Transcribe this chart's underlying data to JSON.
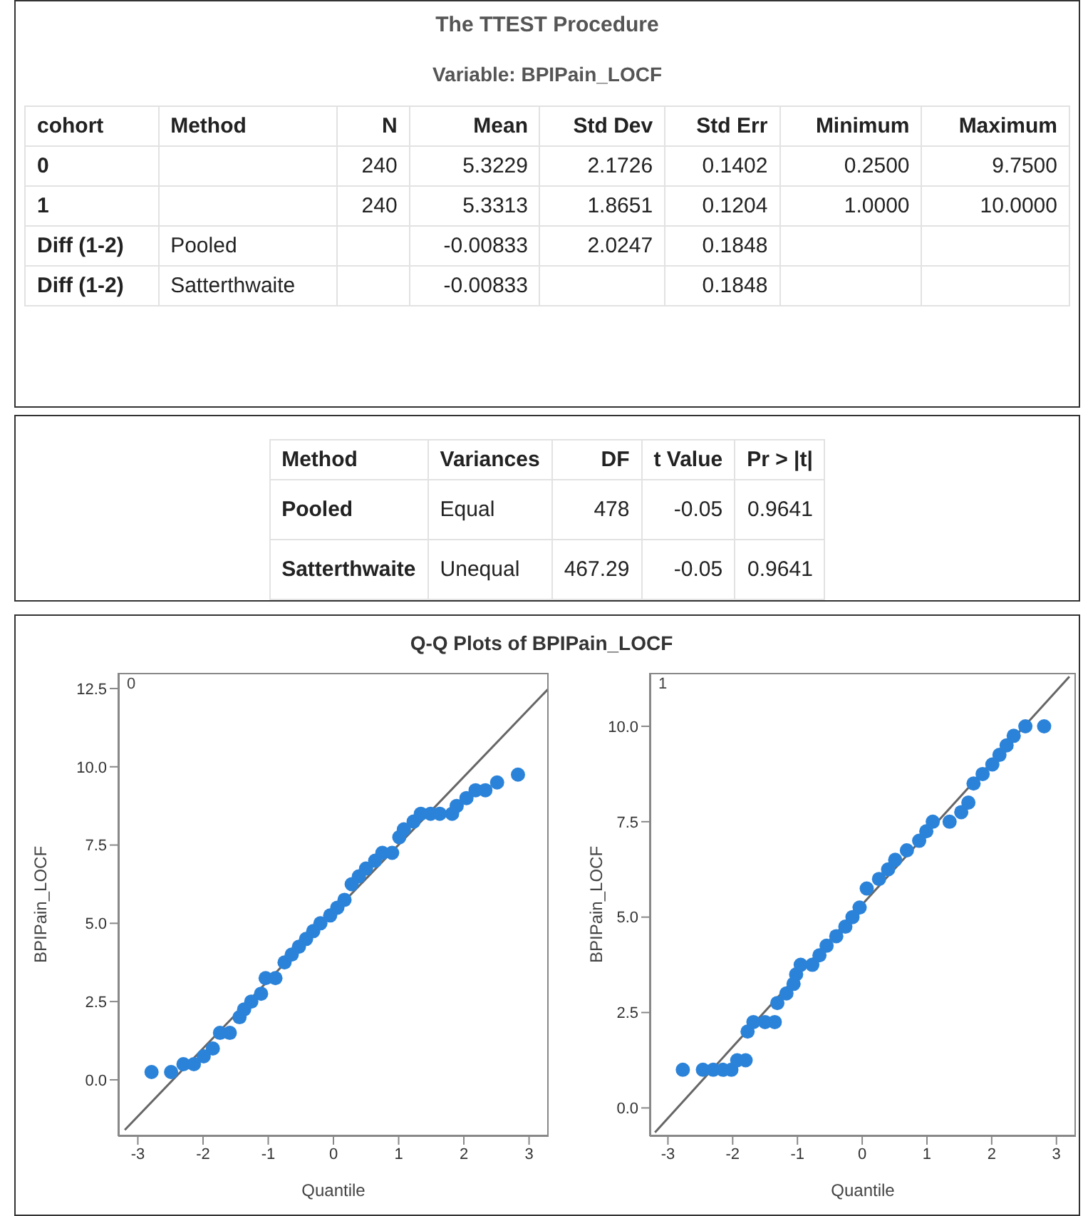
{
  "chart_data": [
    {
      "type": "other",
      "title": "The TTEST Procedure",
      "subtitle": "Variable: BPIPain_LOCF",
      "categories": [
        "cohort",
        "Method",
        "N",
        "Mean",
        "Std Dev",
        "Std Err",
        "Minimum",
        "Maximum"
      ],
      "cell_labels": [
        [
          "0",
          null,
          "240",
          "5.3229",
          "2.1726",
          "0.1402",
          "0.2500",
          "9.7500"
        ],
        [
          "1",
          null,
          "240",
          "5.3313",
          "1.8651",
          "0.1204",
          "1.0000",
          "10.0000"
        ],
        [
          "Diff (1-2)",
          "Pooled",
          null,
          "-0.00833",
          "2.0247",
          "0.1848",
          null,
          null
        ],
        [
          "Diff (1-2)",
          "Satterthwaite",
          null,
          "-0.00833",
          null,
          "0.1848",
          null,
          null
        ]
      ]
    },
    {
      "type": "other",
      "categories": [
        "Method",
        "Variances",
        "DF",
        "t Value",
        "Pr > |t|"
      ],
      "cell_labels": [
        [
          "Pooled",
          "Equal",
          "478",
          "-0.05",
          "0.9641"
        ],
        [
          "Satterthwaite",
          "Unequal",
          "467.29",
          "-0.05",
          "0.9641"
        ]
      ]
    },
    {
      "type": "scatter",
      "title": "Q-Q Plots of BPIPain_LOCF",
      "xlabel": "Quantile",
      "ylabel": "BPIPain_LOCF",
      "annotations": [
        "0"
      ],
      "xlim": [
        -3.3,
        3.3
      ],
      "xticks": [
        -3,
        -2,
        -1,
        0,
        1,
        2,
        3
      ],
      "ylim": [
        -1.8,
        13.0
      ],
      "yticks": [
        {
          "value": 0,
          "label": "0.0"
        },
        2.5,
        {
          "value": 5,
          "label": "5.0"
        },
        7.5,
        {
          "value": 10,
          "label": "10.0"
        },
        12.5
      ],
      "series": [
        {
          "type": "scatter",
          "marker": "circle",
          "color": "#2b83d9",
          "x": [
            -2.79,
            -2.49,
            -2.3,
            -2.14,
            -1.99,
            -1.85,
            -1.74,
            -1.59,
            -1.44,
            -1.37,
            -1.26,
            -1.11,
            -1.04,
            -0.89,
            -0.75,
            -0.64,
            -0.53,
            -0.42,
            -0.31,
            -0.2,
            -0.05,
            0.06,
            0.17,
            0.28,
            0.39,
            0.5,
            0.64,
            0.75,
            0.9,
            1.01,
            1.08,
            1.23,
            1.34,
            1.49,
            1.63,
            1.82,
            1.89,
            2.04,
            2.18,
            2.33,
            2.51,
            2.83
          ],
          "values": [
            0.25,
            0.25,
            0.5,
            0.5,
            0.75,
            1.0,
            1.5,
            1.5,
            2.0,
            2.25,
            2.5,
            2.75,
            3.25,
            3.25,
            3.75,
            4.0,
            4.25,
            4.5,
            4.75,
            5.0,
            5.25,
            5.5,
            5.75,
            6.25,
            6.5,
            6.75,
            7.0,
            7.25,
            7.25,
            7.75,
            8.0,
            8.25,
            8.5,
            8.5,
            8.5,
            8.5,
            8.75,
            9.0,
            9.25,
            9.25,
            9.5,
            9.75
          ]
        },
        {
          "type": "line",
          "color": "#666666",
          "x": [
            -3.2,
            3.3
          ],
          "values": [
            -1.6,
            12.5
          ]
        }
      ]
    },
    {
      "type": "scatter",
      "xlabel": "Quantile",
      "ylabel": "BPIPain_LOCF",
      "annotations": [
        "1"
      ],
      "xlim": [
        -3.28,
        3.3
      ],
      "xticks": [
        -3,
        -2,
        -1,
        0,
        1,
        2,
        3
      ],
      "ylim": [
        -0.74,
        11.4
      ],
      "yticks": [
        {
          "value": 0,
          "label": "0.0"
        },
        2.5,
        {
          "value": 5,
          "label": "5.0"
        },
        7.5,
        {
          "value": 10,
          "label": "10.0"
        }
      ],
      "series": [
        {
          "type": "scatter",
          "marker": "circle",
          "color": "#2b83d9",
          "x": [
            -2.77,
            -2.46,
            -2.3,
            -2.15,
            -2.02,
            -1.93,
            -1.8,
            -1.77,
            -1.68,
            -1.5,
            -1.35,
            -1.31,
            -1.17,
            -1.06,
            -1.02,
            -0.95,
            -0.77,
            -0.66,
            -0.55,
            -0.4,
            -0.26,
            -0.15,
            -0.04,
            0.07,
            0.26,
            0.4,
            0.51,
            0.69,
            0.88,
            0.99,
            1.09,
            1.35,
            1.53,
            1.64,
            1.72,
            1.86,
            2.01,
            2.12,
            2.23,
            2.34,
            2.52,
            2.81
          ],
          "values": [
            1.0,
            1.0,
            1.0,
            1.0,
            1.0,
            1.25,
            1.25,
            2.0,
            2.25,
            2.25,
            2.25,
            2.75,
            3.0,
            3.25,
            3.5,
            3.75,
            3.75,
            4.0,
            4.25,
            4.5,
            4.75,
            5.0,
            5.25,
            5.75,
            6.0,
            6.25,
            6.5,
            6.75,
            7.0,
            7.25,
            7.5,
            7.5,
            7.75,
            8.0,
            8.5,
            8.75,
            9.0,
            9.25,
            9.5,
            9.75,
            10.0,
            10.0
          ]
        },
        {
          "type": "line",
          "color": "#666666",
          "x": [
            -3.2,
            3.2
          ],
          "values": [
            -0.64,
            11.3
          ]
        }
      ]
    }
  ]
}
